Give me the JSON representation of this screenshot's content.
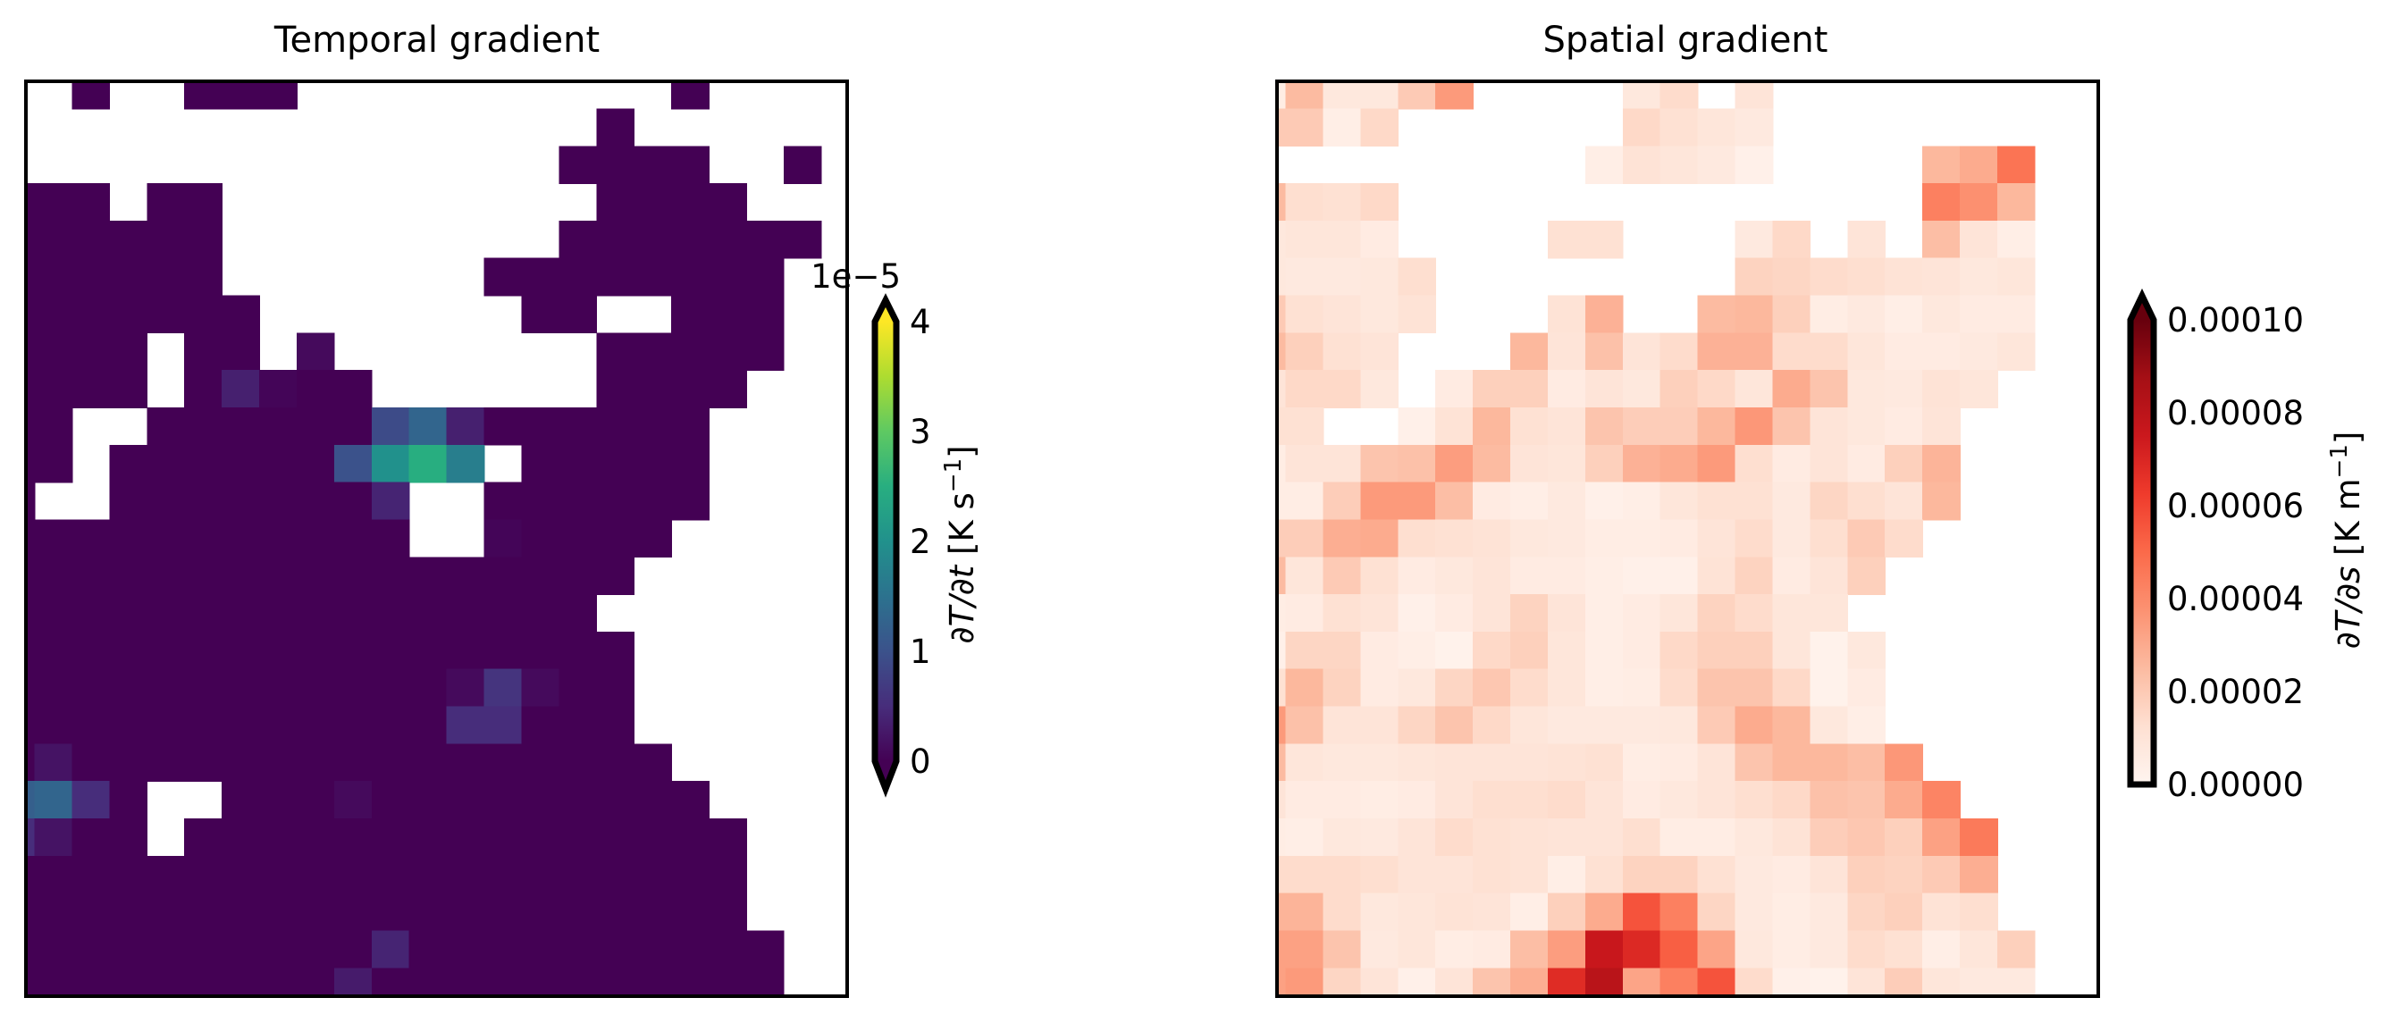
{
  "chart_data": [
    {
      "type": "heatmap",
      "title": "Temporal gradient",
      "colormap": "viridis",
      "extend": "both",
      "value_multiplier": 1e-05,
      "vmin": 0,
      "vmax": 4,
      "colorbar": {
        "offset_text": "1e−5",
        "ticks": [
          0,
          1,
          2,
          3,
          4
        ],
        "tick_labels": [
          "0",
          "1",
          "2",
          "3",
          "4"
        ],
        "label": {
          "var": "∂T/∂t",
          "unit": "[K s",
          "exp": "−1",
          "close": "]"
        }
      },
      "nan_color": "#ffffff",
      "values": [
        [
          null,
          null,
          0,
          null,
          null,
          0,
          0,
          0,
          null,
          null,
          null,
          null,
          null,
          null,
          null,
          null,
          null,
          null,
          0,
          null,
          null,
          null,
          null
        ],
        [
          null,
          null,
          null,
          null,
          null,
          null,
          null,
          null,
          null,
          null,
          null,
          null,
          null,
          null,
          null,
          null,
          0,
          null,
          null,
          null,
          null,
          null,
          null
        ],
        [
          null,
          null,
          null,
          null,
          null,
          null,
          null,
          null,
          null,
          null,
          null,
          null,
          null,
          null,
          null,
          0,
          0,
          0,
          0,
          null,
          null,
          0,
          null
        ],
        [
          0,
          0,
          0,
          null,
          0,
          0,
          null,
          null,
          null,
          null,
          null,
          null,
          null,
          null,
          null,
          null,
          0,
          0,
          0,
          0,
          null,
          null,
          null
        ],
        [
          0,
          0,
          0,
          0,
          0,
          0,
          null,
          null,
          null,
          null,
          null,
          null,
          null,
          null,
          null,
          0,
          0,
          0,
          0,
          0,
          0,
          0,
          null
        ],
        [
          0,
          0,
          0,
          0,
          0,
          0,
          null,
          null,
          null,
          null,
          null,
          null,
          null,
          0,
          0,
          0,
          0,
          0,
          0,
          0,
          0,
          null,
          null
        ],
        [
          0,
          0,
          0,
          0,
          0,
          0,
          0,
          null,
          null,
          null,
          null,
          null,
          null,
          null,
          0,
          0,
          null,
          null,
          0,
          0,
          0,
          null,
          null
        ],
        [
          0,
          0,
          0,
          0,
          null,
          0,
          0,
          null,
          0.1,
          null,
          null,
          null,
          null,
          null,
          null,
          null,
          0,
          0,
          0,
          0,
          0,
          null,
          null
        ],
        [
          0,
          0,
          0,
          0,
          null,
          0,
          0.35,
          0.05,
          0,
          0,
          null,
          null,
          null,
          null,
          null,
          null,
          0,
          0,
          0,
          0,
          null,
          null,
          null
        ],
        [
          0,
          0,
          null,
          null,
          0,
          0,
          0,
          0,
          0,
          0,
          0.9,
          1.3,
          0.35,
          0,
          0,
          0,
          0,
          0,
          0,
          null,
          null,
          null,
          null
        ],
        [
          0,
          0,
          null,
          0,
          0,
          0,
          0,
          0,
          0,
          1.0,
          2.0,
          2.5,
          1.7,
          null,
          0,
          0,
          0,
          0,
          0,
          null,
          null,
          null,
          null
        ],
        [
          0,
          null,
          null,
          0,
          0,
          0,
          0,
          0,
          0,
          0,
          0.4,
          null,
          null,
          0,
          0,
          0,
          0,
          0,
          0,
          null,
          null,
          null,
          null
        ],
        [
          0,
          0,
          0,
          0,
          0,
          0,
          0,
          0,
          0,
          0,
          0,
          null,
          null,
          0.05,
          0,
          0,
          0,
          0,
          null,
          null,
          null,
          null,
          null
        ],
        [
          0,
          0,
          0,
          0,
          0,
          0,
          0,
          0,
          0,
          0,
          0,
          0,
          0,
          0,
          0,
          0,
          0,
          null,
          null,
          null,
          null,
          null,
          null
        ],
        [
          0,
          0,
          0,
          0,
          0,
          0,
          0,
          0,
          0,
          0,
          0,
          0,
          0,
          0,
          0,
          0,
          null,
          null,
          null,
          null,
          null,
          null,
          null
        ],
        [
          0,
          0,
          0,
          0,
          0,
          0,
          0,
          0,
          0,
          0,
          0,
          0,
          0,
          0,
          0,
          0,
          0,
          null,
          null,
          null,
          null,
          null,
          null
        ],
        [
          0,
          0,
          0,
          0,
          0,
          0,
          0,
          0,
          0,
          0,
          0,
          0,
          0.1,
          0.6,
          0.1,
          0,
          0,
          null,
          null,
          null,
          null,
          null,
          null
        ],
        [
          0,
          0,
          0,
          0,
          0,
          0,
          0,
          0,
          0,
          0,
          0,
          0,
          0.5,
          0.5,
          0,
          0,
          0,
          null,
          null,
          null,
          null,
          null,
          null
        ],
        [
          0,
          0.2,
          0,
          0,
          0,
          0,
          0,
          0,
          0,
          0,
          0,
          0,
          0,
          0,
          0,
          0,
          0,
          0,
          null,
          null,
          null,
          null,
          null
        ],
        [
          1.2,
          1.3,
          0.5,
          0,
          null,
          null,
          0,
          0,
          0,
          0.1,
          0,
          0,
          0,
          0,
          0,
          0,
          0,
          0,
          0,
          null,
          null,
          null,
          null
        ],
        [
          0.5,
          0.2,
          0,
          0,
          null,
          0,
          0,
          0,
          0,
          0,
          0,
          0,
          0,
          0,
          0,
          0,
          0,
          0,
          0,
          0,
          null,
          null,
          null
        ],
        [
          0,
          0,
          0,
          0,
          0,
          0,
          0,
          0,
          0,
          0,
          0,
          0,
          0,
          0,
          0,
          0,
          0,
          0,
          0,
          0,
          null,
          null,
          null
        ],
        [
          0,
          0,
          0,
          0,
          0,
          0,
          0,
          0,
          0,
          0,
          0,
          0,
          0,
          0,
          0,
          0,
          0,
          0,
          0,
          0,
          null,
          null,
          null
        ],
        [
          0,
          0,
          0,
          0,
          0,
          0,
          0,
          0,
          0,
          0,
          0.4,
          0,
          0,
          0,
          0,
          0,
          0,
          0,
          0,
          0,
          0,
          null,
          null
        ],
        [
          0,
          0,
          0,
          0,
          0,
          0,
          0,
          0,
          0,
          0.3,
          0,
          0,
          0,
          0,
          0,
          0,
          0,
          0,
          0,
          0,
          0,
          null,
          null
        ]
      ]
    },
    {
      "type": "heatmap",
      "title": "Spatial gradient",
      "colormap": "Reds",
      "extend": "max",
      "value_multiplier": 1e-05,
      "vmin": 0,
      "vmax": 10,
      "colorbar": {
        "offset_text": "",
        "ticks": [
          0,
          2,
          4,
          6,
          8,
          10
        ],
        "tick_labels": [
          "0.00000",
          "0.00002",
          "0.00004",
          "0.00006",
          "0.00008",
          "0.00010"
        ],
        "label": {
          "var": "∂T/∂s",
          "unit": "[K m",
          "exp": "−1",
          "close": "]"
        }
      },
      "nan_color": "#ffffff",
      "values": [
        [
          0.5,
          2.5,
          0.8,
          0.8,
          2.0,
          3.5,
          null,
          null,
          null,
          null,
          0.8,
          1.4,
          null,
          1.0,
          null,
          null,
          null,
          null,
          null,
          null,
          null,
          null,
          null
        ],
        [
          2.0,
          2.0,
          0.4,
          1.5,
          null,
          null,
          null,
          null,
          null,
          null,
          1.5,
          1.2,
          0.9,
          0.7,
          null,
          null,
          null,
          null,
          null,
          null,
          null,
          null,
          null
        ],
        [
          null,
          null,
          null,
          null,
          null,
          null,
          null,
          null,
          null,
          0.4,
          1.1,
          0.9,
          0.7,
          0.3,
          null,
          null,
          null,
          null,
          2.6,
          3.0,
          4.7,
          null,
          null
        ],
        [
          2.5,
          1.3,
          1.2,
          1.5,
          null,
          null,
          null,
          null,
          null,
          null,
          null,
          null,
          null,
          null,
          null,
          null,
          null,
          null,
          4.3,
          3.8,
          2.6,
          null,
          null
        ],
        [
          0.8,
          0.9,
          0.9,
          0.6,
          null,
          null,
          null,
          null,
          1.2,
          1.2,
          null,
          null,
          null,
          0.7,
          1.5,
          null,
          1.0,
          null,
          2.4,
          1.0,
          0.4,
          null,
          null
        ],
        [
          0.8,
          0.7,
          0.7,
          0.8,
          1.3,
          null,
          null,
          null,
          null,
          null,
          null,
          null,
          null,
          1.7,
          1.6,
          1.4,
          1.3,
          1.1,
          1.0,
          0.8,
          0.9,
          null,
          null
        ],
        [
          2.0,
          1.2,
          1.0,
          0.8,
          1.1,
          null,
          null,
          null,
          1.1,
          2.8,
          null,
          null,
          2.5,
          2.6,
          1.8,
          0.5,
          0.7,
          0.4,
          0.8,
          0.6,
          0.6,
          null,
          null
        ],
        [
          2.5,
          1.8,
          1.2,
          1.0,
          null,
          null,
          null,
          2.6,
          1.0,
          2.3,
          1.0,
          1.4,
          2.8,
          2.8,
          1.4,
          1.4,
          0.9,
          0.6,
          0.6,
          0.7,
          0.9,
          null,
          null
        ],
        [
          1.0,
          1.5,
          1.5,
          0.8,
          null,
          0.6,
          1.8,
          1.8,
          0.6,
          1.0,
          0.8,
          1.8,
          1.5,
          0.9,
          3.0,
          2.2,
          0.8,
          0.7,
          1.1,
          0.9,
          null,
          null,
          null
        ],
        [
          1.2,
          1.2,
          null,
          null,
          0.3,
          1.1,
          2.6,
          1.2,
          1.0,
          2.2,
          1.9,
          1.9,
          2.6,
          3.6,
          2.2,
          1.0,
          0.8,
          0.6,
          1.0,
          null,
          null,
          null,
          null
        ],
        [
          0.5,
          1.0,
          1.0,
          2.2,
          2.3,
          3.4,
          2.5,
          1.0,
          0.9,
          1.8,
          2.8,
          3.0,
          3.5,
          1.3,
          0.6,
          1.0,
          0.6,
          1.8,
          2.7,
          null,
          null,
          null,
          null
        ],
        [
          0.5,
          0.5,
          1.9,
          3.5,
          3.5,
          2.4,
          0.6,
          0.4,
          0.7,
          0.3,
          0.4,
          0.9,
          1.2,
          1.2,
          0.7,
          1.6,
          1.3,
          1.0,
          2.6,
          null,
          null,
          null,
          null
        ],
        [
          1.9,
          1.9,
          2.9,
          3.0,
          1.3,
          1.2,
          1.1,
          0.8,
          0.7,
          0.5,
          0.5,
          0.6,
          1.0,
          1.4,
          0.7,
          1.3,
          2.0,
          1.4,
          null,
          null,
          null,
          null,
          null
        ],
        [
          2.5,
          0.9,
          2.0,
          1.2,
          0.6,
          0.8,
          1.0,
          0.6,
          0.6,
          0.4,
          0.3,
          0.3,
          1.1,
          1.7,
          0.6,
          1.0,
          1.8,
          null,
          null,
          null,
          null,
          null,
          null
        ],
        [
          0.5,
          0.6,
          1.2,
          1.0,
          0.3,
          0.6,
          1.0,
          1.7,
          1.0,
          0.4,
          0.6,
          0.9,
          1.7,
          1.4,
          0.9,
          0.9,
          null,
          null,
          null,
          null,
          null,
          null,
          null
        ],
        [
          0.3,
          1.6,
          1.6,
          0.6,
          0.4,
          0.2,
          1.5,
          1.8,
          0.9,
          0.4,
          0.6,
          1.5,
          1.8,
          1.8,
          0.9,
          0.2,
          0.8,
          null,
          null,
          null,
          null,
          null,
          null
        ],
        [
          1.2,
          2.6,
          1.7,
          0.6,
          0.8,
          1.6,
          2.1,
          1.4,
          0.9,
          0.4,
          0.5,
          1.4,
          2.2,
          2.2,
          1.5,
          0.2,
          0.6,
          null,
          null,
          null,
          null,
          null,
          null
        ],
        [
          3.5,
          2.3,
          1.0,
          1.0,
          1.6,
          2.2,
          1.5,
          0.9,
          0.7,
          0.7,
          0.7,
          0.8,
          2.0,
          3.0,
          2.6,
          0.8,
          0.4,
          null,
          null,
          null,
          null,
          null,
          null
        ],
        [
          2.5,
          0.9,
          0.8,
          0.8,
          0.9,
          1.0,
          1.0,
          1.0,
          1.1,
          1.2,
          0.5,
          0.6,
          1.0,
          2.2,
          2.6,
          2.6,
          2.4,
          3.6,
          null,
          null,
          null,
          null,
          null
        ],
        [
          1.0,
          0.6,
          0.6,
          0.5,
          0.6,
          1.0,
          1.3,
          1.3,
          1.4,
          1.0,
          0.6,
          0.8,
          1.0,
          1.3,
          1.5,
          2.3,
          2.2,
          3.0,
          4.2,
          null,
          null,
          null,
          null
        ],
        [
          0.5,
          0.4,
          0.8,
          0.7,
          1.0,
          1.4,
          1.2,
          1.1,
          1.0,
          1.0,
          1.3,
          0.5,
          0.5,
          0.8,
          1.1,
          1.9,
          2.1,
          1.8,
          3.3,
          4.5,
          null,
          null,
          null
        ],
        [
          1.4,
          1.4,
          1.4,
          1.3,
          1.0,
          1.0,
          1.2,
          1.1,
          0.4,
          1.2,
          1.7,
          1.7,
          1.2,
          0.7,
          0.6,
          1.0,
          1.8,
          1.7,
          2.0,
          2.9,
          null,
          null,
          null
        ],
        [
          2.7,
          2.7,
          1.4,
          0.8,
          0.9,
          1.1,
          1.0,
          0.4,
          1.8,
          3.0,
          5.6,
          4.3,
          1.6,
          0.7,
          0.5,
          0.7,
          1.6,
          1.8,
          1.1,
          1.3,
          null,
          null,
          null
        ],
        [
          3.3,
          3.3,
          2.2,
          0.7,
          0.9,
          0.5,
          0.6,
          2.4,
          3.4,
          7.6,
          6.9,
          5.3,
          3.2,
          0.8,
          0.5,
          0.7,
          1.4,
          1.2,
          0.4,
          0.9,
          1.8,
          null,
          null
        ],
        [
          3.3,
          3.5,
          1.6,
          1.0,
          0.3,
          1.0,
          2.2,
          2.9,
          6.8,
          8.1,
          3.2,
          4.3,
          5.6,
          1.4,
          0.3,
          0.2,
          1.0,
          1.9,
          0.9,
          0.7,
          0.7,
          null,
          null
        ]
      ]
    }
  ]
}
